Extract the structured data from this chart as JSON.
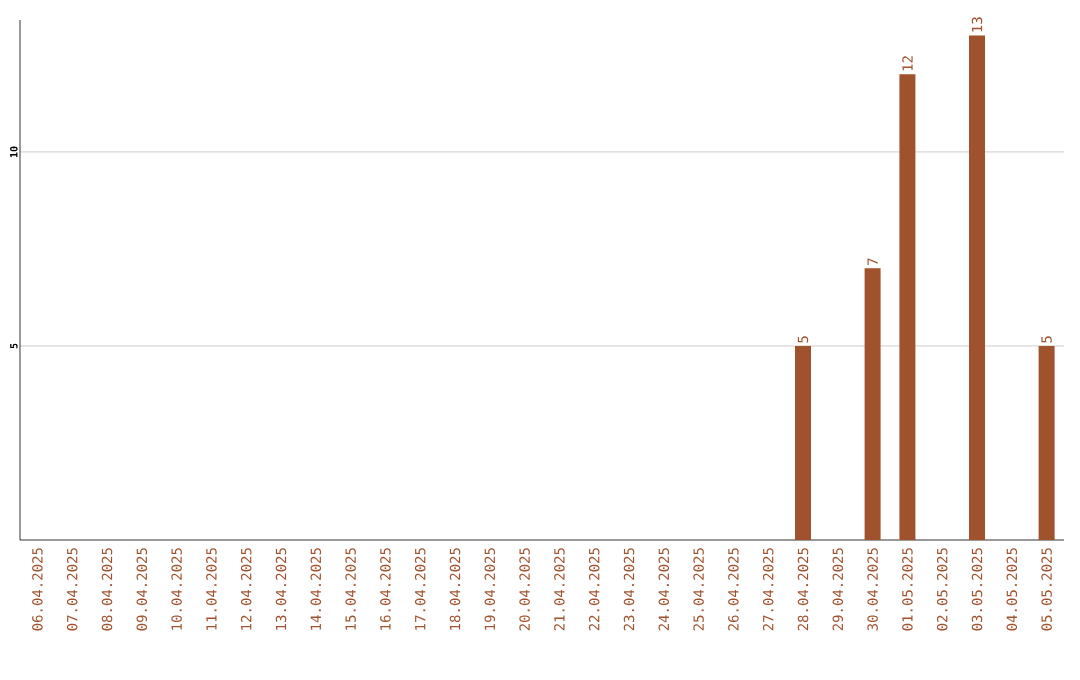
{
  "chart_data": {
    "type": "bar",
    "categories": [
      "06.04.2025",
      "07.04.2025",
      "08.04.2025",
      "09.04.2025",
      "10.04.2025",
      "11.04.2025",
      "12.04.2025",
      "13.04.2025",
      "14.04.2025",
      "15.04.2025",
      "16.04.2025",
      "17.04.2025",
      "18.04.2025",
      "19.04.2025",
      "20.04.2025",
      "21.04.2025",
      "22.04.2025",
      "23.04.2025",
      "24.04.2025",
      "25.04.2025",
      "26.04.2025",
      "27.04.2025",
      "28.04.2025",
      "29.04.2025",
      "30.04.2025",
      "01.05.2025",
      "02.05.2025",
      "03.05.2025",
      "04.05.2025",
      "05.05.2025"
    ],
    "values": [
      0,
      0,
      0,
      0,
      0,
      0,
      0,
      0,
      0,
      0,
      0,
      0,
      0,
      0,
      0,
      0,
      0,
      0,
      0,
      0,
      0,
      0,
      5,
      0,
      7,
      12,
      0,
      13,
      0,
      5
    ],
    "value_labels": [
      null,
      null,
      null,
      null,
      null,
      null,
      null,
      null,
      null,
      null,
      null,
      null,
      null,
      null,
      null,
      null,
      null,
      null,
      null,
      null,
      null,
      null,
      "5",
      null,
      "7",
      "12",
      null,
      "13",
      null,
      "5"
    ],
    "color": "#a0522d",
    "ylim": [
      0,
      13.4
    ],
    "yticks": [
      5,
      10
    ],
    "grid": "y"
  }
}
